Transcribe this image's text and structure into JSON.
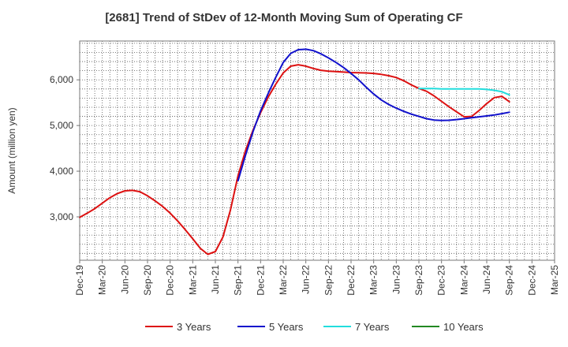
{
  "chart_data": {
    "type": "line",
    "title": "[2681]  Trend of StDev of 12-Month Moving Sum of Operating CF",
    "ylabel": "Amount (million yen)",
    "xlabel": "",
    "x_ticks": [
      "Dec-19",
      "Mar-20",
      "Jun-20",
      "Sep-20",
      "Dec-20",
      "Mar-21",
      "Jun-21",
      "Sep-21",
      "Dec-21",
      "Mar-22",
      "Jun-22",
      "Sep-22",
      "Dec-22",
      "Mar-23",
      "Jun-23",
      "Sep-23",
      "Dec-23",
      "Mar-24",
      "Jun-24",
      "Sep-24",
      "Dec-24",
      "Mar-25"
    ],
    "y_ticks": [
      3000,
      4000,
      5000,
      6000
    ],
    "y_tick_labels": [
      "3,000",
      "4,000",
      "5,000",
      "6,000"
    ],
    "ylim": [
      2050,
      6850
    ],
    "grid": true,
    "legend_position": "bottom",
    "series": [
      {
        "name": "3 Years",
        "color": "#dd1111",
        "x": [
          "Dec-19",
          "Jan-20",
          "Feb-20",
          "Mar-20",
          "Apr-20",
          "May-20",
          "Jun-20",
          "Jul-20",
          "Aug-20",
          "Sep-20",
          "Oct-20",
          "Nov-20",
          "Dec-20",
          "Jan-21",
          "Feb-21",
          "Mar-21",
          "Apr-21",
          "May-21",
          "Jun-21",
          "Jul-21",
          "Aug-21",
          "Sep-21",
          "Oct-21",
          "Nov-21",
          "Dec-21",
          "Jan-22",
          "Feb-22",
          "Mar-22",
          "Apr-22",
          "May-22",
          "Jun-22",
          "Jul-22",
          "Aug-22",
          "Sep-22",
          "Oct-22",
          "Nov-22",
          "Dec-22",
          "Jan-23",
          "Feb-23",
          "Mar-23",
          "Apr-23",
          "May-23",
          "Jun-23",
          "Jul-23",
          "Aug-23",
          "Sep-23",
          "Oct-23",
          "Nov-23",
          "Dec-23",
          "Jan-24",
          "Feb-24",
          "Mar-24",
          "Apr-24",
          "May-24",
          "Jun-24",
          "Jul-24",
          "Aug-24",
          "Sep-24"
        ],
        "y": [
          2990,
          3080,
          3180,
          3300,
          3420,
          3510,
          3570,
          3580,
          3550,
          3460,
          3350,
          3230,
          3080,
          2910,
          2720,
          2520,
          2310,
          2180,
          2240,
          2560,
          3150,
          3900,
          4450,
          4900,
          5280,
          5620,
          5900,
          6150,
          6300,
          6330,
          6300,
          6250,
          6210,
          6190,
          6180,
          6170,
          6160,
          6155,
          6150,
          6140,
          6120,
          6090,
          6050,
          5980,
          5890,
          5810,
          5750,
          5650,
          5530,
          5410,
          5300,
          5190,
          5200,
          5330,
          5480,
          5610,
          5640,
          5520
        ]
      },
      {
        "name": "5 Years",
        "color": "#1111cc",
        "x": [
          "Sep-21",
          "Oct-21",
          "Nov-21",
          "Dec-21",
          "Jan-22",
          "Feb-22",
          "Mar-22",
          "Apr-22",
          "May-22",
          "Jun-22",
          "Jul-22",
          "Aug-22",
          "Sep-22",
          "Oct-22",
          "Nov-22",
          "Dec-22",
          "Jan-23",
          "Feb-23",
          "Mar-23",
          "Apr-23",
          "May-23",
          "Jun-23",
          "Jul-23",
          "Aug-23",
          "Sep-23",
          "Oct-23",
          "Nov-23",
          "Dec-23",
          "Jan-24",
          "Feb-24",
          "Mar-24",
          "Apr-24",
          "May-24",
          "Jun-24",
          "Jul-24",
          "Aug-24",
          "Sep-24"
        ],
        "y": [
          3790,
          4350,
          4870,
          5320,
          5700,
          6050,
          6380,
          6580,
          6660,
          6670,
          6640,
          6570,
          6480,
          6380,
          6270,
          6140,
          6000,
          5840,
          5690,
          5560,
          5460,
          5380,
          5310,
          5250,
          5200,
          5150,
          5120,
          5110,
          5115,
          5130,
          5150,
          5170,
          5190,
          5210,
          5230,
          5260,
          5290
        ]
      },
      {
        "name": "7 Years",
        "color": "#22dddd",
        "x": [
          "Sep-23",
          "Oct-23",
          "Nov-23",
          "Dec-23",
          "Jan-24",
          "Feb-24",
          "Mar-24",
          "Apr-24",
          "May-24",
          "Jun-24",
          "Jul-24",
          "Aug-24",
          "Sep-24"
        ],
        "y": [
          5810,
          5810,
          5810,
          5800,
          5800,
          5800,
          5800,
          5800,
          5800,
          5790,
          5770,
          5740,
          5670
        ]
      },
      {
        "name": "10 Years",
        "color": "#228822",
        "x": [],
        "y": []
      }
    ]
  }
}
